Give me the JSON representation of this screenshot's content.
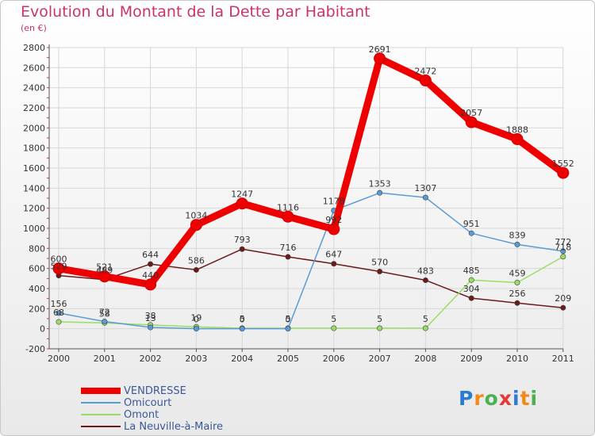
{
  "title": "Evolution du Montant de la Dette par Habitant",
  "unit_label": "(en €)",
  "watermark": "Proxiti",
  "chart_data": {
    "type": "line",
    "title": "Evolution du Montant de la Dette par Habitant",
    "ylabel": "(en €)",
    "xlabel": "",
    "ylim": [
      -200,
      2800
    ],
    "y_ticks": [
      -200,
      0,
      200,
      400,
      600,
      800,
      1000,
      1200,
      1400,
      1600,
      1800,
      2000,
      2200,
      2400,
      2600,
      2800
    ],
    "grid": true,
    "legend_position": "bottom-left",
    "x": [
      "2000",
      "2001",
      "2002",
      "2003",
      "2004",
      "2005",
      "2006",
      "2007",
      "2008",
      "2009",
      "2010",
      "2011"
    ],
    "series": [
      {
        "name": "VENDRESSE",
        "color": "#ee0000",
        "values": [
          600,
          521,
          440,
          1034,
          1247,
          1116,
          992,
          2691,
          2472,
          2057,
          1888,
          1552
        ]
      },
      {
        "name": "Omicourt",
        "color": "#5b9bd5",
        "values": [
          156,
          72,
          13,
          0,
          0,
          0,
          1178,
          1353,
          1307,
          951,
          839,
          772
        ]
      },
      {
        "name": "Omont",
        "color": "#99dd66",
        "values": [
          68,
          58,
          38,
          19,
          5,
          5,
          5,
          5,
          5,
          485,
          459,
          718
        ]
      },
      {
        "name": "La Neuville-à-Maire",
        "color": "#6b1a1a",
        "values": [
          529,
          489,
          644,
          586,
          793,
          716,
          647,
          570,
          483,
          304,
          256,
          209
        ]
      }
    ]
  }
}
